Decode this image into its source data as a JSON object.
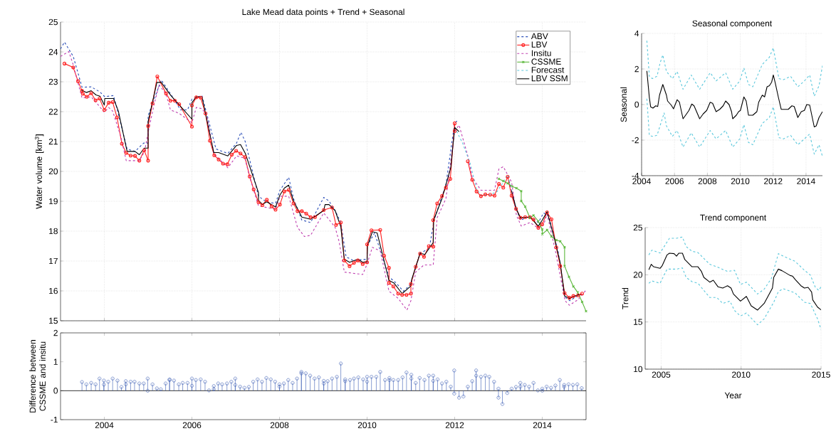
{
  "chart_data": [
    {
      "type": "line",
      "title": "Lake Mead data points + Trend + Seasonal",
      "ylabel": "Water volume [km$^{3}$]",
      "xlim": [
        2003,
        2015
      ],
      "ylim": [
        15,
        25
      ],
      "xticks": [
        2004,
        2006,
        2008,
        2010,
        2012,
        2014
      ],
      "yticks": [
        15,
        16,
        17,
        18,
        19,
        20,
        21,
        22,
        23,
        24,
        25
      ],
      "tick_labels": "y",
      "grid": true,
      "legend": "top right",
      "series": [
        {
          "name": "ABV",
          "color": "#2b4fb8",
          "line_style": "dashed",
          "marker": "none",
          "x": [
            2003.0,
            2003.09,
            2003.29,
            2003.4,
            2003.49,
            2003.7,
            2003.9,
            2004.01,
            2004.21,
            2004.33,
            2004.52,
            2004.7,
            2004.9,
            2005.0,
            2005.0,
            2005.3,
            2005.52,
            2005.74,
            2005.9,
            2006.0,
            2006.23,
            2006.55,
            2006.82,
            2007.02,
            2007.12,
            2007.22,
            2007.52,
            2007.71,
            2007.91,
            2008.01,
            2008.21,
            2008.32,
            2008.51,
            2008.71,
            2009.01,
            2009.13,
            2009.27,
            2009.4,
            2009.52,
            2009.68,
            2010.0,
            2010.0,
            2010.17,
            2010.5,
            2010.66,
            2010.83,
            2011.0,
            2011.21,
            2011.42,
            2011.53,
            2011.8,
            2012.0,
            2012.08,
            2012.7,
            2013.24,
            2013.4,
            2013.5,
            2013.72,
            2013.91,
            2014.03,
            2014.14,
            2014.36,
            2014.52,
            2014.63,
            2014.84
          ],
          "values": [
            24.1,
            24.33,
            23.85,
            23.29,
            22.82,
            22.83,
            22.66,
            22.5,
            22.54,
            21.87,
            20.75,
            20.67,
            20.95,
            20.95,
            21.87,
            23.06,
            22.58,
            22.06,
            22.06,
            22.42,
            22.54,
            20.75,
            20.6,
            20.95,
            21.31,
            20.99,
            19.17,
            18.97,
            18.93,
            19.37,
            19.8,
            19.09,
            18.37,
            18.29,
            19.13,
            19.01,
            18.69,
            18.29,
            17.14,
            17.02,
            17.06,
            17.5,
            17.94,
            16.47,
            16.27,
            15.99,
            16.23,
            17.26,
            17.42,
            18.37,
            19.56,
            21.63,
            21.71,
            null,
            19.68,
            18.77,
            18.37,
            18.49,
            18.29,
            18.61,
            18.53,
            17.34,
            15.79,
            15.67,
            15.87
          ]
        },
        {
          "name": "LBV",
          "color": "#ff2020",
          "line_style": "solid",
          "marker": "circle",
          "x": [
            2003.09,
            2003.29,
            2003.4,
            2003.49,
            2003.51,
            2003.6,
            2003.7,
            2003.8,
            2003.89,
            2004.0,
            2004.1,
            2004.19,
            2004.29,
            2004.4,
            2004.5,
            2004.6,
            2004.7,
            2004.8,
            2004.91,
            2005.0,
            2005.0,
            2005.1,
            2005.21,
            2005.41,
            2005.51,
            2005.61,
            2005.71,
            2006.0,
            2006.0,
            2006.1,
            2006.2,
            2006.31,
            2006.41,
            2006.51,
            2006.61,
            2006.71,
            2006.81,
            2006.91,
            2007.01,
            2007.11,
            2007.21,
            2007.32,
            2007.41,
            2007.52,
            2007.61,
            2007.71,
            2007.82,
            2007.91,
            2008.01,
            2008.11,
            2008.21,
            2008.32,
            2008.41,
            2008.51,
            2008.61,
            2008.71,
            2008.81,
            2009.01,
            2009.2,
            2009.29,
            2009.4,
            2009.48,
            2009.6,
            2009.7,
            2009.79,
            2009.9,
            2010.0,
            2010.0,
            2010.1,
            2010.3,
            2010.39,
            2010.5,
            2010.5,
            2010.6,
            2010.71,
            2010.8,
            2010.9,
            2011.0,
            2011.0,
            2011.11,
            2011.21,
            2011.3,
            2011.41,
            2011.51,
            2011.51,
            2011.6,
            2011.71,
            2011.8,
            2011.9,
            2012.0,
            2012.0,
            2012.15,
            2012.3,
            2012.4,
            2012.5,
            2012.6,
            2012.7,
            2012.81,
            2012.91,
            2013.01,
            2013.11,
            2013.21,
            2013.3,
            2013.4,
            2013.5,
            2013.61,
            2013.72,
            2013.8,
            2013.91,
            2014.0,
            2014.11,
            2014.21,
            2014.32,
            2014.41,
            2014.51,
            2014.62,
            2014.71,
            2014.82,
            2014.91
          ],
          "values": [
            23.61,
            23.48,
            23.02,
            22.7,
            22.6,
            22.5,
            22.62,
            22.38,
            22.44,
            22.06,
            22.3,
            22.32,
            21.81,
            20.93,
            20.62,
            20.53,
            20.52,
            20.36,
            20.71,
            20.36,
            21.52,
            22.28,
            23.18,
            22.61,
            22.37,
            22.37,
            22.25,
            21.5,
            22.21,
            22.48,
            22.47,
            21.94,
            21.03,
            20.54,
            20.4,
            20.26,
            20.24,
            20.56,
            20.69,
            20.6,
            20.48,
            19.83,
            19.4,
            18.97,
            18.87,
            19.05,
            18.83,
            18.72,
            18.89,
            19.33,
            19.38,
            18.93,
            18.67,
            18.67,
            18.59,
            18.47,
            18.47,
            18.71,
            18.79,
            18.21,
            18.29,
            17.02,
            16.83,
            16.94,
            17.02,
            16.9,
            16.96,
            17.56,
            18.03,
            18.04,
            17.18,
            16.77,
            16.27,
            16.15,
            15.91,
            15.87,
            15.87,
            15.91,
            16.23,
            16.81,
            17.25,
            17.14,
            17.5,
            17.48,
            18.37,
            18.93,
            19.18,
            19.46,
            19.75,
            21.61,
            21.35,
            null,
            20.34,
            19.72,
            19.33,
            19.17,
            19.23,
            19.22,
            19.19,
            19.58,
            19.46,
            19.82,
            19.19,
            18.75,
            18.45,
            18.47,
            18.47,
            18.39,
            18.11,
            18.23,
            18.63,
            18.4,
            17.46,
            16.83,
            15.93,
            15.77,
            15.83,
            15.85,
            15.91
          ]
        },
        {
          "name": "Insitu",
          "color": "#c040b0",
          "line_style": "dashed",
          "marker": "none",
          "x": [
            2003.0,
            2003.19,
            2003.29,
            2003.49,
            2003.7,
            2003.8,
            2004.0,
            2004.1,
            2004.19,
            2004.38,
            2004.5,
            2004.8,
            2004.92,
            2005.0,
            2005.14,
            2005.25,
            2005.41,
            2005.51,
            2005.71,
            2006.0,
            2006.1,
            2006.23,
            2006.34,
            2006.5,
            2006.82,
            2007.02,
            2007.21,
            2007.32,
            2007.52,
            2007.91,
            2008.01,
            2008.21,
            2008.41,
            2008.57,
            2008.71,
            2009.01,
            2009.27,
            2009.36,
            2009.48,
            2009.68,
            2009.9,
            2010.0,
            2010.12,
            2010.3,
            2010.5,
            2010.71,
            2010.91,
            2011.0,
            2011.11,
            2011.3,
            2011.51,
            2011.6,
            2011.8,
            2012.0,
            2012.1,
            2012.3,
            2012.4,
            2012.6,
            2012.91,
            2013.01,
            2013.11,
            2013.3,
            2013.41,
            2013.52,
            2013.72,
            2013.91,
            2014.03,
            2014.11,
            2014.3,
            2014.52,
            2014.62,
            2014.82,
            2015.0
          ],
          "values": [
            23.85,
            24.01,
            23.57,
            22.46,
            22.5,
            22.33,
            21.98,
            22.14,
            22.02,
            21.15,
            20.36,
            20.36,
            20.67,
            21.31,
            22.26,
            22.9,
            22.58,
            22.06,
            21.94,
            21.63,
            22.14,
            22.1,
            21.87,
            20.6,
            20.12,
            20.52,
            20.44,
            19.8,
            18.85,
            18.73,
            19.17,
            19.17,
            18.13,
            17.82,
            17.86,
            18.61,
            18.13,
            17.66,
            16.63,
            16.59,
            16.55,
            16.9,
            17.46,
            17.34,
            15.99,
            15.75,
            15.36,
            15.67,
            16.63,
            16.87,
            16.87,
            18.45,
            19.09,
            21.35,
            21.55,
            20.52,
            19.8,
            19.37,
            19.37,
            20.08,
            20.16,
            19.64,
            18.53,
            18.17,
            18.29,
            18.1,
            18.21,
            18.57,
            17.34,
            15.67,
            15.52,
            15.71,
            16.03
          ]
        },
        {
          "name": "CSSME",
          "color": "#5cb83c",
          "line_style": "solid",
          "marker": "cross",
          "x": [
            2013.01,
            2013.11,
            2013.21,
            2013.31,
            2013.41,
            2013.52,
            2013.52,
            2013.61,
            2013.72,
            2013.8,
            2013.91,
            2014.0,
            2014.0,
            2014.11,
            2014.21,
            2014.32,
            2014.41,
            2014.51,
            2014.51,
            2014.61,
            2014.71,
            2014.81,
            2014.91,
            2015.0
          ],
          "values": [
            19.75,
            19.68,
            19.6,
            19.5,
            19.44,
            19.34,
            19.01,
            18.82,
            18.44,
            18.53,
            18.33,
            18.06,
            17.9,
            18.04,
            17.82,
            17.7,
            17.66,
            17.46,
            16.83,
            16.47,
            16.15,
            15.95,
            15.63,
            15.32
          ]
        },
        {
          "name": "Forecast",
          "color": "#5cc8dc",
          "line_style": "dashed",
          "marker": "none",
          "x": [
            2012.0,
            2012.18,
            2012.35,
            2012.5,
            2012.6,
            2012.81,
            2012.97,
            2013.11,
            2013.21,
            2013.27
          ],
          "values": [
            21.47,
            20.95,
            20.28,
            19.4,
            19.2,
            19.22,
            19.33,
            19.64,
            19.88,
            19.56
          ]
        },
        {
          "name": "LBV SSM",
          "color": "#000000",
          "line_style": "solid",
          "marker": "none",
          "x": [
            2003.48,
            2003.59,
            2003.7,
            2003.81,
            2003.9,
            2004.0,
            2004.01,
            2004.21,
            2004.32,
            2004.52,
            2004.7,
            2004.8,
            2004.91,
            2005.0,
            2005.0,
            2005.2,
            2005.3,
            2005.52,
            2006.0,
            2006.0,
            2006.1,
            2006.23,
            2006.5,
            2006.61,
            2006.82,
            2007.02,
            2007.11,
            2007.22,
            2007.52,
            2007.52,
            2007.61,
            2007.71,
            2007.91,
            2008.01,
            2008.11,
            2008.21,
            2008.32,
            2008.51,
            2008.71,
            2009.01,
            2009.04,
            2009.13,
            2009.27,
            2009.4,
            2009.48,
            2009.6,
            2009.79,
            2009.9,
            2010.0,
            2010.01,
            2010.12,
            2010.23,
            2010.5,
            2010.61,
            2010.8,
            2010.99,
            2011.02,
            2011.21,
            2011.32,
            2011.51,
            2011.52,
            2011.71,
            2011.91,
            2012.0,
            2012.1,
            2012.7,
            2013.3,
            2013.4,
            2013.5,
            2013.72,
            2013.91,
            2014.0,
            2014.11,
            2014.28,
            2014.41,
            2014.51,
            2014.62,
            2014.82,
            2014.91
          ],
          "values": [
            22.72,
            22.64,
            22.7,
            22.56,
            22.52,
            22.22,
            22.44,
            22.44,
            22.02,
            20.67,
            20.67,
            20.56,
            20.78,
            20.78,
            21.67,
            22.98,
            22.98,
            22.54,
            21.75,
            22.3,
            22.5,
            22.5,
            20.63,
            20.63,
            20.52,
            20.87,
            20.9,
            20.6,
            19.29,
            19.02,
            18.9,
            18.98,
            18.81,
            19.21,
            19.44,
            19.54,
            19.01,
            18.47,
            18.4,
            18.69,
            18.89,
            18.89,
            18.69,
            18.15,
            17.06,
            16.96,
            17.06,
            16.96,
            16.98,
            17.5,
            17.98,
            17.94,
            16.35,
            16.27,
            15.91,
            16.15,
            16.39,
            17.26,
            17.22,
            17.62,
            18.37,
            19.09,
            20.12,
            21.47,
            21.33,
            null,
            19.35,
            18.77,
            18.45,
            18.47,
            18.17,
            18.37,
            18.65,
            17.74,
            16.94,
            15.83,
            15.75,
            15.87,
            15.87
          ]
        }
      ]
    },
    {
      "type": "lollipop",
      "ylabel": "Difference between CSSME and insitu",
      "xlim": [
        2003,
        2015
      ],
      "ylim": [
        -1,
        2
      ],
      "xticks": [
        2004,
        2006,
        2008,
        2010,
        2012,
        2014
      ],
      "yticks": [
        -1,
        0,
        1,
        2
      ],
      "marker": "circle",
      "series": [
        {
          "color": "#3a5cb4",
          "x": [
            2003.49,
            2003.59,
            2003.7,
            2003.8,
            2003.89,
            2003.99,
            2003.99,
            2004.09,
            2004.19,
            2004.3,
            2004.39,
            2004.49,
            2004.49,
            2004.6,
            2004.69,
            2004.8,
            2004.9,
            2004.99,
            2004.99,
            2005.1,
            2005.2,
            2005.29,
            2005.4,
            2005.49,
            2005.49,
            2005.59,
            2005.7,
            2005.79,
            2005.9,
            2006.0,
            2006.0,
            2006.09,
            2006.2,
            2006.3,
            2006.39,
            2006.5,
            2006.5,
            2006.6,
            2006.69,
            2006.8,
            2006.9,
            2006.99,
            2006.99,
            2007.1,
            2007.2,
            2007.3,
            2007.4,
            2007.5,
            2007.6,
            2007.7,
            2007.8,
            2007.9,
            2008.0,
            2008.0,
            2008.1,
            2008.2,
            2008.3,
            2008.4,
            2008.5,
            2008.5,
            2008.6,
            2008.7,
            2008.8,
            2008.9,
            2009.01,
            2009.01,
            2009.1,
            2009.2,
            2009.31,
            2009.4,
            2009.5,
            2009.5,
            2009.61,
            2009.7,
            2009.8,
            2009.91,
            2010.0,
            2010.0,
            2010.1,
            2010.21,
            2010.3,
            2010.41,
            2010.51,
            2010.51,
            2010.6,
            2010.71,
            2010.81,
            2010.9,
            2011.01,
            2011.01,
            2011.11,
            2011.2,
            2011.31,
            2011.41,
            2011.51,
            2011.51,
            2011.61,
            2011.71,
            2011.81,
            2011.91,
            2011.99,
            2011.99,
            2012.1,
            2012.2,
            2012.3,
            2012.4,
            2012.49,
            2012.49,
            2012.6,
            2012.7,
            2012.79,
            2012.9,
            2013.0,
            2013.0,
            2013.09,
            2013.2,
            2013.3,
            2013.4,
            2013.5,
            2013.5,
            2013.6,
            2013.7,
            2013.8,
            2013.9,
            2014.0,
            2014.0,
            2014.1,
            2014.2,
            2014.3,
            2014.4,
            2014.5,
            2014.5,
            2014.6,
            2014.7,
            2014.8,
            2014.9
          ],
          "values": [
            0.3,
            0.22,
            0.27,
            0.22,
            0.42,
            0.35,
            0.21,
            0.31,
            0.42,
            0.35,
            0.13,
            0.33,
            0.22,
            0.31,
            0.31,
            0.25,
            0.25,
            0.42,
            0.0,
            0.22,
            0.08,
            0.05,
            0.25,
            0.39,
            0.37,
            0.35,
            0.22,
            0.27,
            0.27,
            0.42,
            0.17,
            0.37,
            0.39,
            0.31,
            0.01,
            0.05,
            0.16,
            0.25,
            0.22,
            0.25,
            0.31,
            0.42,
            0.2,
            0.14,
            0.1,
            0.13,
            0.31,
            0.39,
            0.31,
            0.44,
            0.39,
            0.31,
            0.22,
            0.14,
            0.25,
            0.37,
            0.27,
            0.42,
            0.65,
            0.6,
            0.6,
            0.52,
            0.42,
            0.46,
            0.34,
            0.25,
            0.33,
            0.42,
            0.48,
            0.94,
            0.39,
            0.33,
            0.37,
            0.42,
            0.46,
            0.39,
            0.48,
            0.31,
            0.48,
            0.48,
            0.65,
            0.37,
            0.44,
            0.37,
            0.37,
            0.37,
            0.46,
            0.63,
            0.55,
            0.42,
            0.27,
            0.44,
            0.37,
            0.52,
            0.52,
            0.34,
            0.39,
            0.25,
            0.31,
            0.14,
            0.7,
            -0.1,
            -0.24,
            -0.2,
            0.14,
            0.33,
            0.7,
            0.52,
            0.48,
            0.52,
            0.48,
            0.31,
            0.07,
            -0.24,
            -0.46,
            -0.08,
            0.07,
            0.13,
            0.27,
            0.14,
            0.2,
            0.14,
            0.27,
            0.01,
            0.0,
            0.07,
            0.14,
            0.1,
            0.18,
            0.37,
            0.2,
            0.14,
            0.22,
            0.2,
            0.22,
            0.09
          ]
        }
      ]
    },
    {
      "type": "line",
      "title": "Seasonal component",
      "ylabel": "Seasonal",
      "xlim": [
        2004,
        2015
      ],
      "ylim": [
        -4,
        4
      ],
      "xticks": [
        2004,
        2006,
        2008,
        2010,
        2012,
        2014
      ],
      "yticks": [
        -4,
        -2,
        0,
        2,
        4
      ],
      "grid": true,
      "series": [
        {
          "color": "#5cc8dc",
          "line_style": "dashed",
          "x": [
            2004.32,
            2004.47,
            2004.65,
            2004.94,
            2005.12,
            2005.29,
            2005.51,
            2005.87,
            2006.16,
            2006.52,
            2007.02,
            2007.53,
            2008.17,
            2008.53,
            2009.11,
            2009.54,
            2009.97,
            2010.22,
            2010.5,
            2010.76,
            2011.34,
            2011.77,
            2012.01,
            2012.35,
            2012.63,
            2013.06,
            2013.5,
            2013.9,
            2014.22,
            2014.5,
            2014.79,
            2015.0
          ],
          "values": [
            3.59,
            1.59,
            1.46,
            1.59,
            2.33,
            2.79,
            1.86,
            1.46,
            1.86,
            0.86,
            1.66,
            0.86,
            1.79,
            1.33,
            1.79,
            0.86,
            1.33,
            2.06,
            1.13,
            1.0,
            2.26,
            2.66,
            3.19,
            1.46,
            1.4,
            1.59,
            1.0,
            1.33,
            1.66,
            0.47,
            1.06,
            2.19
          ]
        },
        {
          "color": "#5cc8dc",
          "line_style": "dashed",
          "x": [
            2004.32,
            2004.47,
            2004.65,
            2004.94,
            2005.12,
            2005.37,
            2005.51,
            2005.87,
            2006.16,
            2006.52,
            2007.02,
            2007.53,
            2008.17,
            2008.53,
            2009.11,
            2009.54,
            2009.97,
            2010.22,
            2010.5,
            2010.76,
            2011.34,
            2011.77,
            2012.01,
            2012.35,
            2012.63,
            2013.06,
            2013.5,
            2013.9,
            2014.22,
            2014.5,
            2014.79,
            2015.0
          ],
          "values": [
            0.33,
            -1.73,
            -1.79,
            -1.73,
            -1.2,
            -0.47,
            -1.2,
            -1.79,
            -1.46,
            -2.39,
            -1.59,
            -2.39,
            -1.46,
            -1.93,
            -1.46,
            -2.39,
            -1.93,
            -1.13,
            -2.13,
            -2.26,
            -1.06,
            -0.73,
            -0.13,
            -1.86,
            -1.93,
            -1.73,
            -2.26,
            -1.93,
            -1.66,
            -2.79,
            -2.26,
            -2.92
          ]
        },
        {
          "color": "#000000",
          "line_style": "solid",
          "x": [
            2004.32,
            2004.47,
            2004.55,
            2004.69,
            2004.86,
            2004.98,
            2005.09,
            2005.29,
            2005.51,
            2005.58,
            2005.8,
            2005.94,
            2006.16,
            2006.3,
            2006.52,
            2006.73,
            2006.88,
            2007.05,
            2007.19,
            2007.53,
            2007.74,
            2007.96,
            2008.17,
            2008.32,
            2008.53,
            2008.75,
            2008.96,
            2009.11,
            2009.32,
            2009.47,
            2009.54,
            2009.76,
            2009.9,
            2010.01,
            2010.22,
            2010.36,
            2010.5,
            2010.76,
            2011.01,
            2011.12,
            2011.34,
            2011.48,
            2011.63,
            2011.77,
            2011.91,
            2012.01,
            2012.13,
            2012.32,
            2012.49,
            2012.92,
            2013.14,
            2013.28,
            2013.5,
            2013.71,
            2013.9,
            2014.04,
            2014.22,
            2014.5,
            2014.62,
            2014.79,
            2015.0
          ],
          "values": [
            1.89,
            0.4,
            -0.13,
            -0.2,
            -0.07,
            -0.11,
            0.53,
            1.13,
            0.53,
            0.2,
            -0.03,
            -0.24,
            0.27,
            0.13,
            -0.8,
            -0.53,
            -0.33,
            0.03,
            -0.07,
            -0.8,
            -0.53,
            -0.33,
            0.13,
            0.07,
            -0.4,
            -0.27,
            -0.07,
            0.2,
            0.0,
            -0.4,
            -0.8,
            -0.6,
            -0.4,
            -0.33,
            0.43,
            0.2,
            -0.6,
            -0.6,
            -0.4,
            0.13,
            0.53,
            0.43,
            1.0,
            1.06,
            1.26,
            1.66,
            1.2,
            0.4,
            -0.27,
            -0.27,
            -0.07,
            -0.11,
            -0.73,
            -0.4,
            -0.33,
            0.0,
            -0.03,
            -1.26,
            -1.2,
            -0.73,
            -0.4
          ]
        }
      ]
    },
    {
      "type": "line",
      "title": "Trend component",
      "xlabel": "Year",
      "ylabel": "Trend",
      "xlim": [
        2004,
        2015
      ],
      "ylim": [
        10,
        25
      ],
      "xticks": [
        2005,
        2010,
        2015
      ],
      "yticks": [
        10,
        15,
        20,
        25
      ],
      "grid": true,
      "series": [
        {
          "color": "#5cc8dc",
          "line_style": "dashed",
          "x": [
            2004.23,
            2004.42,
            2004.93,
            2005.52,
            2005.96,
            2006.33,
            2006.56,
            2006.93,
            2007.3,
            2008.04,
            2008.48,
            2009.15,
            2009.59,
            2009.96,
            2010.33,
            2011.03,
            2011.44,
            2011.89,
            2012.33,
            2012.63,
            2013.37,
            2013.96,
            2014.33,
            2014.63,
            2014.85,
            2015.0
          ],
          "values": [
            22.11,
            22.61,
            22.31,
            23.87,
            23.87,
            24.0,
            22.99,
            22.49,
            22.36,
            21.11,
            20.85,
            20.35,
            20.48,
            18.97,
            19.22,
            17.96,
            18.47,
            19.6,
            22.24,
            21.98,
            21.43,
            20.48,
            19.97,
            18.72,
            18.34,
            18.72
          ]
        },
        {
          "color": "#5cc8dc",
          "line_style": "dashed",
          "x": [
            2004.23,
            2004.42,
            2004.93,
            2005.37,
            2005.96,
            2006.33,
            2006.56,
            2006.93,
            2007.3,
            2008.04,
            2008.48,
            2008.85,
            2009.3,
            2009.59,
            2009.96,
            2010.33,
            2011.03,
            2011.44,
            2012.04,
            2012.33,
            2012.63,
            2013.37,
            2013.96,
            2014.33,
            2014.78,
            2015.0
          ],
          "values": [
            19.1,
            19.35,
            19.1,
            20.6,
            20.6,
            20.73,
            19.72,
            19.27,
            19.1,
            17.59,
            17.59,
            16.96,
            17.21,
            16.21,
            15.63,
            15.95,
            14.7,
            15.33,
            17.09,
            18.22,
            18.52,
            18.09,
            17.09,
            16.96,
            15.33,
            14.2
          ]
        },
        {
          "color": "#000000",
          "line_style": "solid",
          "x": [
            2004.23,
            2004.38,
            2004.53,
            2004.93,
            2005.07,
            2005.37,
            2005.52,
            2005.81,
            2005.96,
            2006.11,
            2006.33,
            2006.48,
            2006.93,
            2007.3,
            2007.52,
            2007.67,
            2008.04,
            2008.26,
            2008.56,
            2008.85,
            2009.15,
            2009.37,
            2009.52,
            2009.96,
            2010.33,
            2010.63,
            2011.03,
            2011.44,
            2011.96,
            2012.04,
            2012.33,
            2012.56,
            2013.07,
            2013.22,
            2013.4,
            2013.74,
            2013.96,
            2014.19,
            2014.41,
            2014.48,
            2014.78,
            2015.0
          ],
          "values": [
            20.53,
            21.11,
            20.85,
            20.68,
            20.98,
            22.11,
            22.29,
            22.24,
            21.98,
            22.29,
            22.29,
            21.61,
            20.85,
            20.85,
            20.35,
            19.72,
            19.22,
            19.42,
            18.72,
            18.59,
            18.84,
            18.59,
            17.96,
            17.21,
            17.71,
            16.71,
            16.26,
            16.96,
            18.59,
            19.72,
            20.6,
            20.43,
            19.92,
            19.85,
            19.47,
            18.84,
            18.59,
            18.67,
            18.17,
            17.34,
            16.58,
            16.28
          ]
        }
      ]
    }
  ]
}
